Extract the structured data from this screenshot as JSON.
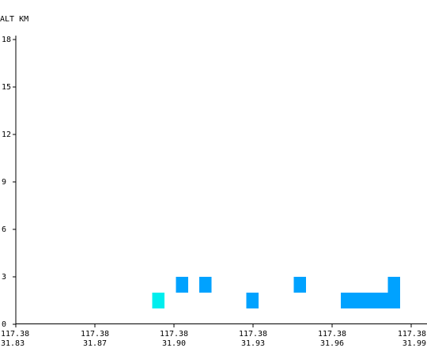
{
  "chart_data": {
    "type": "heatmap",
    "ylabel": "ALT KM",
    "ylim": [
      0,
      18
    ],
    "y_ticks": [
      0,
      3,
      6,
      9,
      12,
      15,
      18
    ],
    "x_ticks": [
      {
        "lon": "117.38",
        "lat": "31.83"
      },
      {
        "lon": "117.38",
        "lat": "31.87"
      },
      {
        "lon": "117.38",
        "lat": "31.90"
      },
      {
        "lon": "117.38",
        "lat": "31.93"
      },
      {
        "lon": "117.38",
        "lat": "31.96"
      },
      {
        "lon": "117.38",
        "lat": "31.99"
      }
    ],
    "xlim": [
      31.83,
      31.99
    ],
    "cell_width": 0.0048,
    "cell_height": 1,
    "colors": {
      "blue": "#00a2ff",
      "cyan": "#00eeee"
    },
    "cells": [
      {
        "x": 31.8948,
        "alt": 2,
        "color": "blue"
      },
      {
        "x": 31.8852,
        "alt": 1,
        "color": "cyan"
      },
      {
        "x": 31.9044,
        "alt": 2,
        "color": "blue"
      },
      {
        "x": 31.9236,
        "alt": 1,
        "color": "blue"
      },
      {
        "x": 31.9428,
        "alt": 2,
        "color": "blue"
      },
      {
        "x": 31.962,
        "alt": 1,
        "color": "blue"
      },
      {
        "x": 31.9668,
        "alt": 1,
        "color": "blue"
      },
      {
        "x": 31.9716,
        "alt": 1,
        "color": "blue"
      },
      {
        "x": 31.9764,
        "alt": 1,
        "color": "blue"
      },
      {
        "x": 31.9812,
        "alt": 1,
        "color": "blue"
      },
      {
        "x": 31.9812,
        "alt": 2,
        "color": "blue"
      }
    ]
  }
}
